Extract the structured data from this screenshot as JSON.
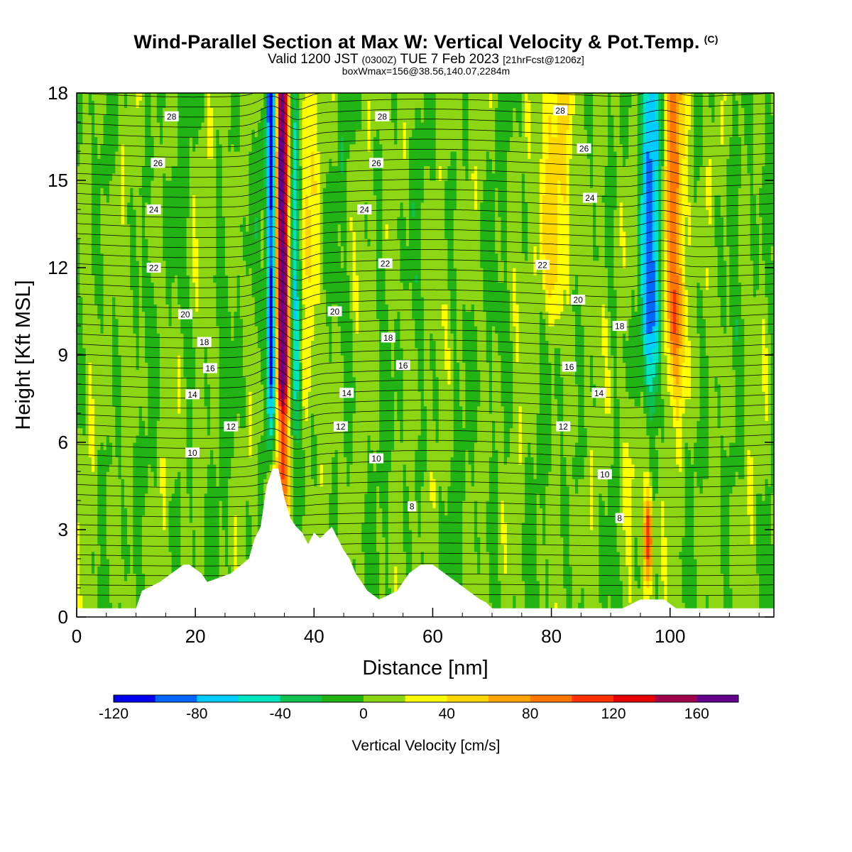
{
  "titles": {
    "main": "Wind-Parallel Section at Max W: Vertical Velocity & Pot.Temp.",
    "copyright": "(C)",
    "valid_prefix": "Valid 1200 JST",
    "valid_utc": "(0300Z)",
    "valid_date": "TUE 7 Feb 2023",
    "forecast": "[21hrFcst@1206z]",
    "box_info": "boxWmax=156@38.56,140.07,2284m"
  },
  "chart_data": {
    "type": "heatmap",
    "xlabel": "Distance [nm]",
    "ylabel": "Height [Kft MSL]",
    "xlim": [
      0,
      117.5
    ],
    "ylim": [
      0,
      18
    ],
    "x_ticks": [
      0,
      20,
      40,
      60,
      80,
      100
    ],
    "y_ticks": [
      0,
      3,
      6,
      9,
      12,
      15,
      18
    ],
    "colorbar": {
      "label": "Vertical Velocity [cm/s]",
      "levels": [
        -120,
        -100,
        -80,
        -60,
        -40,
        -20,
        0,
        20,
        40,
        60,
        80,
        100,
        120,
        140,
        160,
        180
      ],
      "tick_labels": [
        -120,
        -80,
        -40,
        0,
        40,
        80,
        120,
        160
      ],
      "colors": [
        "#0000ee",
        "#0066ff",
        "#00ccff",
        "#00e5c0",
        "#10c050",
        "#22b314",
        "#8cd614",
        "#ffff00",
        "#ffd700",
        "#ffa500",
        "#ff7700",
        "#ff3300",
        "#e60000",
        "#a0004a",
        "#64008c"
      ]
    },
    "terrain_kft": {
      "x": [
        0,
        10,
        11,
        14,
        18,
        19,
        21,
        22,
        26,
        29,
        30,
        31,
        32,
        33,
        34,
        35,
        36,
        37,
        38,
        39,
        40,
        41,
        42,
        43,
        44,
        45,
        46,
        47,
        48,
        49,
        51,
        54,
        56,
        58,
        60,
        62,
        64,
        66,
        68,
        69,
        70,
        76,
        80,
        84,
        90,
        92,
        95,
        99,
        101,
        103,
        110,
        117.5
      ],
      "height": [
        0.3,
        0.3,
        0.9,
        1.2,
        1.8,
        1.8,
        1.5,
        1.2,
        1.5,
        2.0,
        2.7,
        3.1,
        4.5,
        5.1,
        5.1,
        4.1,
        3.4,
        3.1,
        2.9,
        2.5,
        2.9,
        2.7,
        2.9,
        3.1,
        2.7,
        2.3,
        2.0,
        1.5,
        1.2,
        0.9,
        0.6,
        0.9,
        1.5,
        1.8,
        1.8,
        1.5,
        1.2,
        0.9,
        0.6,
        0.5,
        0.3,
        0.3,
        0.3,
        0.3,
        0.3,
        0.3,
        0.6,
        0.6,
        0.3,
        0.3,
        0.3,
        0.3
      ]
    },
    "contour_labels": [
      {
        "text": "28",
        "x": 16,
        "y": 17.2
      },
      {
        "text": "26",
        "x": 13.7,
        "y": 15.6
      },
      {
        "text": "24",
        "x": 13,
        "y": 14.0
      },
      {
        "text": "22",
        "x": 13,
        "y": 12.0
      },
      {
        "text": "20",
        "x": 18.3,
        "y": 10.4
      },
      {
        "text": "18",
        "x": 21.5,
        "y": 9.45
      },
      {
        "text": "16",
        "x": 22.5,
        "y": 8.55
      },
      {
        "text": "14",
        "x": 19.5,
        "y": 7.65
      },
      {
        "text": "12",
        "x": 26,
        "y": 6.55
      },
      {
        "text": "10",
        "x": 19.5,
        "y": 5.65
      },
      {
        "text": "28",
        "x": 51.5,
        "y": 17.2
      },
      {
        "text": "26",
        "x": 50.5,
        "y": 15.6
      },
      {
        "text": "24",
        "x": 48.5,
        "y": 14.0
      },
      {
        "text": "22",
        "x": 52,
        "y": 12.15
      },
      {
        "text": "20",
        "x": 43.5,
        "y": 10.5
      },
      {
        "text": "18",
        "x": 52.5,
        "y": 9.6
      },
      {
        "text": "16",
        "x": 55,
        "y": 8.65
      },
      {
        "text": "14",
        "x": 45.5,
        "y": 7.7
      },
      {
        "text": "12",
        "x": 44.5,
        "y": 6.55
      },
      {
        "text": "10",
        "x": 50.5,
        "y": 5.45
      },
      {
        "text": "8",
        "x": 56.5,
        "y": 3.8
      },
      {
        "text": "28",
        "x": 81.5,
        "y": 17.4
      },
      {
        "text": "26",
        "x": 85.5,
        "y": 16.1
      },
      {
        "text": "24",
        "x": 86.5,
        "y": 14.4
      },
      {
        "text": "22",
        "x": 78.5,
        "y": 12.1
      },
      {
        "text": "20",
        "x": 84.5,
        "y": 10.9
      },
      {
        "text": "18",
        "x": 91.5,
        "y": 10.0
      },
      {
        "text": "16",
        "x": 83,
        "y": 8.6
      },
      {
        "text": "14",
        "x": 88,
        "y": 7.7
      },
      {
        "text": "12",
        "x": 82,
        "y": 6.55
      },
      {
        "text": "10",
        "x": 89,
        "y": 4.9
      },
      {
        "text": "8",
        "x": 91.5,
        "y": 3.4
      }
    ]
  }
}
